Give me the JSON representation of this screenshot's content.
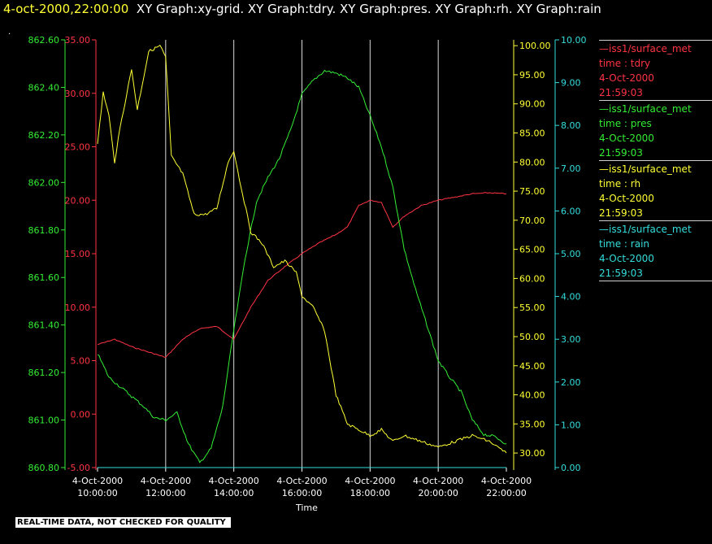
{
  "header": {
    "timestamp": "4-oct-2000,22:00:00",
    "graphs": "XY Graph:xy-grid.  XY Graph:tdry.  XY Graph:pres.  XY Graph:rh.  XY Graph:rain"
  },
  "dot": ".",
  "colors": {
    "tdry": "#ff3344",
    "pres": "#33ee33",
    "rh": "#ffff33",
    "rain": "#33dddd",
    "grid": "#ffffff"
  },
  "legend": [
    {
      "line1": "—iss1/surface_met",
      "line2": "time : tdry",
      "line3": "4-Oct-2000",
      "line4": "21:59:03"
    },
    {
      "line1": "—iss1/surface_met",
      "line2": "time : pres",
      "line3": "4-Oct-2000",
      "line4": "21:59:03"
    },
    {
      "line1": "—iss1/surface_met",
      "line2": "time : rh",
      "line3": "4-Oct-2000",
      "line4": "21:59:03"
    },
    {
      "line1": "—iss1/surface_met",
      "line2": "time : rain",
      "line3": "4-Oct-2000",
      "line4": "21:59:03"
    }
  ],
  "disclaimer": "REAL-TIME DATA, NOT CHECKED FOR QUALITY",
  "chart_data": {
    "type": "line",
    "xlabel": "Time",
    "x_ticks": [
      {
        "date": "4-Oct-2000",
        "time": "10:00:00"
      },
      {
        "date": "4-Oct-2000",
        "time": "12:00:00"
      },
      {
        "date": "4-Oct-2000",
        "time": "14:00:00"
      },
      {
        "date": "4-Oct-2000",
        "time": "16:00:00"
      },
      {
        "date": "4-Oct-2000",
        "time": "18:00:00"
      },
      {
        "date": "4-Oct-2000",
        "time": "20:00:00"
      },
      {
        "date": "4-Oct-2000",
        "time": "22:00:00"
      }
    ],
    "xlim": [
      "10:00:00",
      "22:00:00"
    ],
    "grid": "vertical",
    "axes": {
      "pres": {
        "lim": [
          860.8,
          862.6
        ],
        "ticks": [
          "860.80",
          "861.00",
          "861.20",
          "861.40",
          "861.60",
          "861.80",
          "862.00",
          "862.20",
          "862.40",
          "862.60"
        ]
      },
      "tdry": {
        "lim": [
          -5,
          35
        ],
        "ticks": [
          "-5.00",
          "0.00",
          "5.00",
          "10.00",
          "15.00",
          "20.00",
          "25.00",
          "30.00",
          "35.00"
        ]
      },
      "rh": {
        "lim": [
          27.5,
          101
        ],
        "ticks": [
          "30.00",
          "35.00",
          "40.00",
          "45.00",
          "50.00",
          "55.00",
          "60.00",
          "65.00",
          "70.00",
          "75.00",
          "80.00",
          "85.00",
          "90.00",
          "95.00",
          "100.00"
        ]
      },
      "rain": {
        "lim": [
          0,
          10
        ],
        "ticks": [
          "0.00",
          "1.00",
          "2.00",
          "3.00",
          "4.00",
          "5.00",
          "6.00",
          "7.00",
          "8.00",
          "9.00",
          "10.00"
        ]
      }
    },
    "series": [
      {
        "name": "tdry",
        "axis": "tdry",
        "x": [
          "10:00:00",
          "10:30:00",
          "11:00:00",
          "11:30:00",
          "12:00:00",
          "12:30:00",
          "13:00:00",
          "13:30:00",
          "14:00:00",
          "14:30:00",
          "15:00:00",
          "15:30:00",
          "16:00:00",
          "16:30:00",
          "17:00:00",
          "17:20:00",
          "17:40:00",
          "18:00:00",
          "18:20:00",
          "18:40:00",
          "19:00:00",
          "19:30:00",
          "20:00:00",
          "20:30:00",
          "21:00:00",
          "21:30:00",
          "22:00:00"
        ],
        "values": [
          6.5,
          7.0,
          6.3,
          5.8,
          5.3,
          7.0,
          8.0,
          8.2,
          7.0,
          10.0,
          12.5,
          13.8,
          15.0,
          16.0,
          16.8,
          17.5,
          19.5,
          20.0,
          19.8,
          17.5,
          18.5,
          19.5,
          20.0,
          20.3,
          20.6,
          20.7,
          20.6
        ]
      },
      {
        "name": "pres",
        "axis": "pres",
        "x": [
          "10:00:00",
          "10:20:00",
          "10:40:00",
          "11:00:00",
          "11:20:00",
          "11:40:00",
          "12:00:00",
          "12:20:00",
          "12:40:00",
          "13:00:00",
          "13:20:00",
          "13:40:00",
          "14:00:00",
          "14:20:00",
          "14:40:00",
          "15:00:00",
          "15:20:00",
          "15:40:00",
          "16:00:00",
          "16:20:00",
          "16:40:00",
          "17:00:00",
          "17:20:00",
          "17:40:00",
          "18:00:00",
          "18:20:00",
          "18:40:00",
          "19:00:00",
          "19:20:00",
          "19:40:00",
          "20:00:00",
          "20:20:00",
          "20:40:00",
          "21:00:00",
          "21:20:00",
          "21:40:00",
          "22:00:00"
        ],
        "values": [
          861.28,
          861.18,
          861.14,
          861.1,
          861.06,
          861.01,
          861.0,
          861.03,
          860.9,
          860.82,
          860.88,
          861.05,
          861.38,
          861.68,
          861.92,
          862.02,
          862.1,
          862.22,
          862.37,
          862.43,
          862.47,
          862.46,
          862.44,
          862.4,
          862.28,
          862.15,
          861.98,
          861.72,
          861.55,
          861.4,
          861.25,
          861.18,
          861.12,
          861.0,
          860.94,
          860.93,
          860.9
        ]
      },
      {
        "name": "rh",
        "axis": "rh",
        "x": [
          "10:00:00",
          "10:10:00",
          "10:20:00",
          "10:30:00",
          "10:40:00",
          "11:00:00",
          "11:10:00",
          "11:30:00",
          "11:50:00",
          "12:00:00",
          "12:10:00",
          "12:30:00",
          "12:50:00",
          "13:10:00",
          "13:30:00",
          "13:50:00",
          "14:00:00",
          "14:10:00",
          "14:30:00",
          "14:50:00",
          "15:10:00",
          "15:30:00",
          "15:50:00",
          "16:00:00",
          "16:20:00",
          "16:40:00",
          "17:00:00",
          "17:20:00",
          "17:40:00",
          "18:00:00",
          "18:20:00",
          "18:40:00",
          "19:00:00",
          "19:30:00",
          "20:00:00",
          "20:30:00",
          "21:00:00",
          "21:30:00",
          "22:00:00"
        ],
        "values": [
          83,
          92,
          88,
          80,
          86,
          96,
          89,
          99,
          100,
          98,
          81,
          78,
          71,
          71,
          72,
          80,
          82,
          77,
          68,
          66,
          62,
          63,
          61,
          57,
          55,
          51,
          40,
          35,
          34,
          33,
          34,
          32,
          33,
          32,
          31,
          32,
          33,
          32,
          30
        ]
      },
      {
        "name": "rain",
        "axis": "rain",
        "x": [
          "10:00:00",
          "22:00:00"
        ],
        "values": [
          0.0,
          0.0
        ]
      }
    ]
  }
}
